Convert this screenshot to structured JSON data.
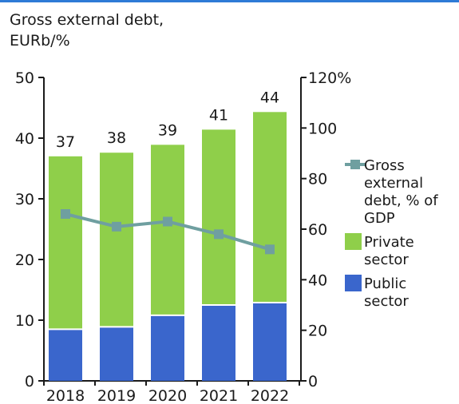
{
  "title_lines": [
    "Gross external debt,",
    "EURb/%"
  ],
  "chart_data": {
    "type": "bar",
    "stacked": true,
    "categories": [
      "2018",
      "2019",
      "2020",
      "2021",
      "2022"
    ],
    "series": [
      {
        "name": "Public sector",
        "type": "bar",
        "axis": "left",
        "color": "#3a66cc",
        "values": [
          8.5,
          8.9,
          10.8,
          12.5,
          12.9
        ]
      },
      {
        "name": "Private sector",
        "type": "bar",
        "axis": "left",
        "color": "#8fcf4a",
        "values": [
          28.5,
          28.7,
          28.1,
          28.9,
          31.4
        ]
      },
      {
        "name": "Gross external debt, % of GDP",
        "type": "line",
        "axis": "right",
        "color": "#6f9fa0",
        "values": [
          66,
          61,
          63,
          58,
          52
        ]
      }
    ],
    "totals": [
      "37",
      "38",
      "39",
      "41",
      "44"
    ],
    "ylim_left": [
      0,
      50
    ],
    "yticks_left": [
      "0",
      "10",
      "20",
      "30",
      "40",
      "50"
    ],
    "ylim_right": [
      0,
      120
    ],
    "yticks_right": [
      "0",
      "20",
      "40",
      "60",
      "80",
      "100",
      "120%"
    ],
    "legend": {
      "placement": "right",
      "items": [
        {
          "lines": [
            "Gross",
            "external",
            "debt, % of",
            "GDP"
          ],
          "color": "#6f9fa0",
          "kind": "line"
        },
        {
          "lines": [
            "Private",
            "sector"
          ],
          "color": "#8fcf4a",
          "kind": "box"
        },
        {
          "lines": [
            "Public",
            "sector"
          ],
          "color": "#3a66cc",
          "kind": "box"
        }
      ]
    },
    "grid": false
  }
}
